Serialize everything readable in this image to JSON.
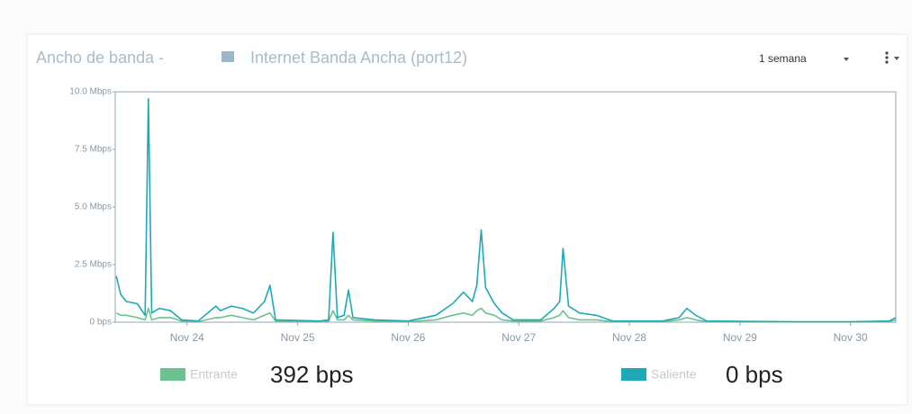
{
  "chart_data": {
    "type": "line",
    "title": "Ancho de banda -",
    "interface_name": "Internet Banda Ancha (port12)",
    "range_selector": "1 semana",
    "x": [
      23.36,
      23.4,
      23.45,
      23.55,
      23.62,
      23.65,
      23.68,
      23.75,
      23.85,
      23.95,
      24.1,
      24.26,
      24.3,
      24.4,
      24.5,
      24.6,
      24.7,
      24.75,
      24.8,
      25.2,
      25.28,
      25.32,
      25.36,
      25.42,
      25.46,
      25.5,
      25.7,
      26.0,
      26.25,
      26.4,
      26.5,
      26.58,
      26.62,
      26.66,
      26.7,
      26.78,
      26.85,
      26.95,
      27.2,
      27.32,
      27.37,
      27.4,
      27.45,
      27.55,
      27.7,
      27.85,
      28.3,
      28.45,
      28.52,
      28.6,
      28.7,
      29.5,
      30.0,
      30.35,
      30.41
    ],
    "series": [
      {
        "name": "Entrante",
        "color": "#6cc28e",
        "current": "392 bps",
        "values": [
          0.4,
          0.3,
          0.3,
          0.2,
          0.1,
          0.6,
          0.1,
          0.2,
          0.2,
          0.05,
          0.02,
          0.2,
          0.2,
          0.3,
          0.2,
          0.1,
          0.3,
          0.4,
          0.05,
          0.02,
          0.05,
          0.5,
          0.1,
          0.1,
          0.3,
          0.1,
          0.05,
          0.02,
          0.1,
          0.3,
          0.4,
          0.3,
          0.5,
          0.6,
          0.4,
          0.3,
          0.1,
          0.05,
          0.05,
          0.2,
          0.3,
          0.5,
          0.2,
          0.1,
          0.1,
          0.02,
          0.02,
          0.1,
          0.2,
          0.1,
          0.02,
          0.01,
          0.01,
          0.02,
          0.1
        ]
      },
      {
        "name": "Saliente",
        "color": "#1fa9b6",
        "current": "0 bps",
        "values": [
          2.0,
          1.2,
          0.9,
          0.8,
          0.3,
          9.7,
          0.4,
          0.6,
          0.5,
          0.1,
          0.05,
          0.7,
          0.5,
          0.7,
          0.6,
          0.4,
          0.9,
          1.6,
          0.1,
          0.05,
          0.1,
          3.9,
          0.2,
          0.3,
          1.4,
          0.2,
          0.1,
          0.05,
          0.3,
          0.8,
          1.3,
          0.9,
          1.6,
          4.0,
          1.5,
          0.8,
          0.4,
          0.1,
          0.1,
          0.6,
          0.9,
          3.2,
          0.7,
          0.4,
          0.3,
          0.05,
          0.05,
          0.2,
          0.6,
          0.3,
          0.05,
          0.02,
          0.02,
          0.05,
          0.2
        ]
      }
    ],
    "xlim": [
      23.35,
      30.41
    ],
    "xticks": [
      {
        "value": 24,
        "label": "Nov 24"
      },
      {
        "value": 25,
        "label": "Nov 25"
      },
      {
        "value": 26,
        "label": "Nov 26"
      },
      {
        "value": 27,
        "label": "Nov 27"
      },
      {
        "value": 28,
        "label": "Nov 28"
      },
      {
        "value": 29,
        "label": "Nov 29"
      },
      {
        "value": 30,
        "label": "Nov 30"
      }
    ],
    "ylim": [
      0,
      10
    ],
    "yticks": [
      {
        "value": 0,
        "label": "0 bps"
      },
      {
        "value": 2.5,
        "label": "2.5 Mbps"
      },
      {
        "value": 5,
        "label": "5.0 Mbps"
      },
      {
        "value": 7.5,
        "label": "7.5 Mbps"
      },
      {
        "value": 10,
        "label": "10.0 Mbps"
      }
    ]
  }
}
